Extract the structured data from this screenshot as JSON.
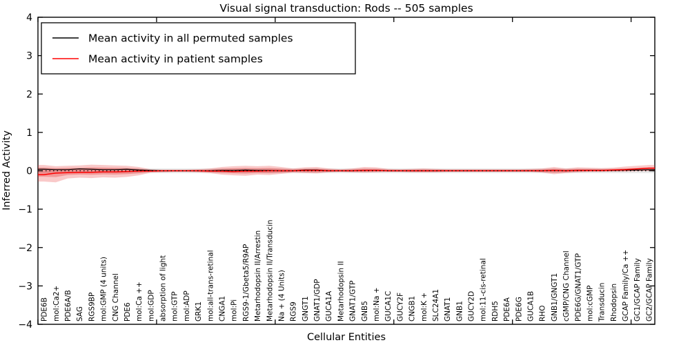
{
  "title": "Visual signal transduction: Rods -- 505 samples",
  "legend": {
    "entries": [
      {
        "label": "Mean activity in all permuted samples",
        "color": "#000000"
      },
      {
        "label": "Mean activity in patient samples",
        "color": "#ff0000"
      }
    ]
  },
  "colors": {
    "patient_line": "#ff0000",
    "permuted_line": "#000000",
    "patient_band_outer": "rgba(235,60,60,0.28)",
    "patient_band_inner": "rgba(225,40,40,0.30)",
    "permuted_band": "rgba(130,130,130,0.18)",
    "zero_line": "#000000",
    "frame": "#000000"
  },
  "chart_data": {
    "type": "line",
    "title": "Visual signal transduction: Rods -- 505 samples",
    "xlabel": "Cellular Entities",
    "ylabel": "Inferred Activity",
    "ylim": [
      -4,
      4
    ],
    "xlim": [
      0,
      52
    ],
    "yticks": [
      4,
      3,
      2,
      1,
      0,
      -1,
      -2,
      -3,
      -4
    ],
    "xticks": [
      0,
      10,
      20,
      30,
      40,
      50
    ],
    "grid": false,
    "legend_position": "upper left",
    "categories": [
      "PDE6B",
      "mol:Ca2+",
      "PDE6A/B",
      "SAG",
      "RGS9BP",
      "mol:GMP (4 units)",
      "CNG Channel",
      "PDE6",
      "mol:Ca ++",
      "mol:GDP",
      "absorption of light",
      "mol:GTP",
      "mol:ADP",
      "GRK1",
      "mol:all-trans-retinal",
      "CNGA1",
      "mol:Pi",
      "RGS9-1/Gbeta5/R9AP",
      "Metarhodopsin II/Arrestin",
      "Metarhodopsin II/Transducin",
      "Na + (4 Units)",
      "RGS9",
      "GNGT1",
      "GNAT1/GDP",
      "GUCA1A",
      "Metarhodopsin II",
      "GNAT1/GTP",
      "GNB5",
      "mol:Na +",
      "GUCA1C",
      "GUCY2F",
      "CNGB1",
      "mol:K +",
      "SLC24A1",
      "GNAT1",
      "GNB1",
      "GUCY2D",
      "mol:11-cis-retinal",
      "RDH5",
      "PDE6A",
      "PDE6G",
      "GUCA1B",
      "RHO",
      "GNB1/GNGT1",
      "cGMP/CNG Channel",
      "PDE6G/GNAT1/GTP",
      "mol:cGMP",
      "Transducin",
      "Rhodopsin",
      "GCAP Family/Ca ++",
      "GC1/GCAP Family",
      "GC2/GCAP Family"
    ],
    "series": [
      {
        "name": "Mean activity in all permuted samples",
        "color": "#000000",
        "values": [
          0.04,
          0.03,
          0.03,
          0.05,
          0.04,
          0.03,
          0.03,
          0.04,
          0.02,
          0.01,
          0.0,
          0.0,
          0.0,
          0.0,
          0.0,
          0.01,
          0.01,
          0.02,
          0.01,
          0.01,
          0.0,
          0.0,
          0.02,
          0.02,
          0.0,
          0.0,
          0.0,
          0.01,
          0.01,
          0.0,
          0.0,
          0.0,
          0.0,
          0.0,
          0.0,
          0.0,
          0.0,
          0.0,
          0.0,
          0.0,
          0.0,
          0.0,
          0.0,
          0.01,
          0.0,
          0.01,
          0.01,
          0.01,
          0.01,
          0.02,
          0.02,
          0.03
        ]
      },
      {
        "name": "Mean activity in patient samples",
        "color": "#ff0000",
        "values": [
          -0.1,
          -0.06,
          -0.05,
          -0.04,
          -0.04,
          -0.03,
          -0.03,
          -0.02,
          -0.01,
          -0.01,
          0.0,
          0.0,
          0.0,
          0.0,
          -0.01,
          -0.01,
          -0.02,
          -0.01,
          -0.01,
          0.0,
          0.0,
          0.0,
          0.01,
          0.01,
          0.0,
          0.0,
          0.0,
          0.01,
          0.01,
          0.0,
          0.0,
          0.0,
          0.0,
          0.0,
          0.0,
          0.0,
          0.0,
          0.0,
          0.0,
          0.0,
          0.0,
          0.0,
          0.0,
          0.01,
          0.0,
          0.01,
          0.01,
          0.01,
          0.02,
          0.03,
          0.05,
          0.07
        ]
      }
    ],
    "bands": [
      {
        "name": "patient-activity-range",
        "upper": [
          0.15,
          0.12,
          0.13,
          0.14,
          0.16,
          0.15,
          0.14,
          0.13,
          0.1,
          0.04,
          0.03,
          0.03,
          0.03,
          0.04,
          0.06,
          0.1,
          0.12,
          0.13,
          0.12,
          0.13,
          0.1,
          0.06,
          0.09,
          0.1,
          0.06,
          0.04,
          0.06,
          0.1,
          0.09,
          0.05,
          0.04,
          0.05,
          0.06,
          0.05,
          0.04,
          0.04,
          0.04,
          0.04,
          0.04,
          0.04,
          0.04,
          0.05,
          0.06,
          0.1,
          0.06,
          0.09,
          0.08,
          0.07,
          0.08,
          0.11,
          0.13,
          0.15
        ],
        "lower": [
          -0.28,
          -0.3,
          -0.2,
          -0.18,
          -0.19,
          -0.17,
          -0.18,
          -0.16,
          -0.12,
          -0.05,
          -0.04,
          -0.03,
          -0.03,
          -0.04,
          -0.06,
          -0.1,
          -0.12,
          -0.13,
          -0.1,
          -0.11,
          -0.08,
          -0.05,
          -0.06,
          -0.07,
          -0.04,
          -0.03,
          -0.04,
          -0.05,
          -0.04,
          -0.03,
          -0.03,
          -0.04,
          -0.04,
          -0.04,
          -0.03,
          -0.03,
          -0.03,
          -0.03,
          -0.03,
          -0.03,
          -0.03,
          -0.03,
          -0.05,
          -0.09,
          -0.06,
          -0.04,
          -0.03,
          -0.03,
          -0.02,
          -0.02,
          -0.01,
          0.0
        ]
      },
      {
        "name": "permuted-activity-range",
        "upper_const": 0.06,
        "lower_const": -0.06
      }
    ],
    "zero_line": {
      "value": 0,
      "style": "dotted",
      "color": "#000000"
    }
  }
}
